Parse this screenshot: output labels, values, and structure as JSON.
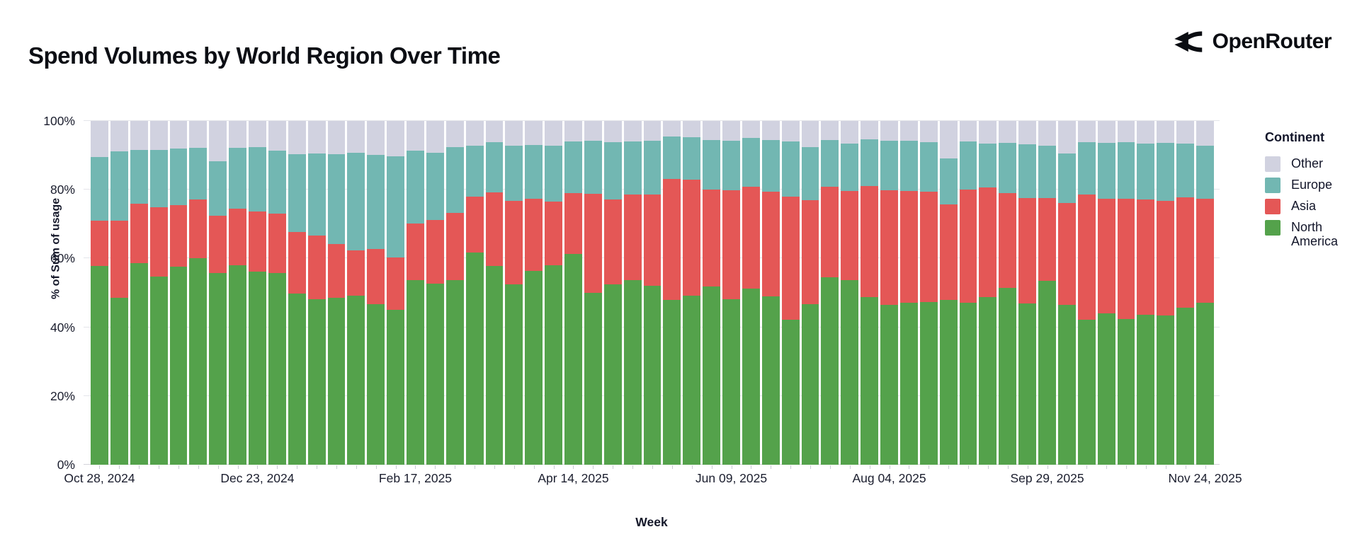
{
  "page": {
    "title": "Spend Volumes by World Region Over Time"
  },
  "brand": {
    "name": "OpenRouter",
    "icon": "openrouter-fork-arrows-icon"
  },
  "legend": {
    "title": "Continent",
    "items": [
      {
        "label": "Other",
        "color": "#d1d2e0"
      },
      {
        "label": "Europe",
        "color": "#72b7b2"
      },
      {
        "label": "Asia",
        "color": "#e45756"
      },
      {
        "label": "North America",
        "color": "#54a24b"
      }
    ]
  },
  "chart_data": {
    "type": "bar",
    "stacked": true,
    "normalized_percent": true,
    "title": "Spend Volumes by World Region Over Time",
    "xlabel": "Week",
    "ylabel": "% of Sum of usage",
    "ylim": [
      0,
      100
    ],
    "y_ticks": [
      "0%",
      "20%",
      "40%",
      "60%",
      "80%",
      "100%"
    ],
    "grid": true,
    "legend_position": "right",
    "x_tick_labels": [
      {
        "bar_index": 0,
        "label": "Oct 28, 2024"
      },
      {
        "bar_index": 8,
        "label": "Dec 23, 2024"
      },
      {
        "bar_index": 16,
        "label": "Feb 17, 2025"
      },
      {
        "bar_index": 24,
        "label": "Apr 14, 2025"
      },
      {
        "bar_index": 32,
        "label": "Jun 09, 2025"
      },
      {
        "bar_index": 40,
        "label": "Aug 04, 2025"
      },
      {
        "bar_index": 48,
        "label": "Sep 29, 2025"
      },
      {
        "bar_index": 56,
        "label": "Nov 24, 2025"
      }
    ],
    "categories": [
      "Oct 28, 2024",
      "Nov 04, 2024",
      "Nov 11, 2024",
      "Nov 18, 2024",
      "Nov 25, 2024",
      "Dec 02, 2024",
      "Dec 09, 2024",
      "Dec 16, 2024",
      "Dec 23, 2024",
      "Dec 30, 2024",
      "Jan 06, 2025",
      "Jan 13, 2025",
      "Jan 20, 2025",
      "Jan 27, 2025",
      "Feb 03, 2025",
      "Feb 10, 2025",
      "Feb 17, 2025",
      "Feb 24, 2025",
      "Mar 03, 2025",
      "Mar 10, 2025",
      "Mar 17, 2025",
      "Mar 24, 2025",
      "Mar 31, 2025",
      "Apr 07, 2025",
      "Apr 14, 2025",
      "Apr 21, 2025",
      "Apr 28, 2025",
      "May 05, 2025",
      "May 12, 2025",
      "May 19, 2025",
      "May 26, 2025",
      "Jun 02, 2025",
      "Jun 09, 2025",
      "Jun 16, 2025",
      "Jun 23, 2025",
      "Jun 30, 2025",
      "Jul 07, 2025",
      "Jul 14, 2025",
      "Jul 21, 2025",
      "Jul 28, 2025",
      "Aug 04, 2025",
      "Aug 11, 2025",
      "Aug 18, 2025",
      "Aug 25, 2025",
      "Sep 01, 2025",
      "Sep 08, 2025",
      "Sep 15, 2025",
      "Sep 22, 2025",
      "Sep 29, 2025",
      "Oct 06, 2025",
      "Oct 13, 2025",
      "Oct 20, 2025",
      "Oct 27, 2025",
      "Nov 03, 2025",
      "Nov 10, 2025",
      "Nov 17, 2025",
      "Nov 24, 2025"
    ],
    "series": [
      {
        "name": "North America",
        "color": "#54a24b",
        "values": [
          57.9,
          48.6,
          58.7,
          54.7,
          57.7,
          60.1,
          55.7,
          58.0,
          56.1,
          55.8,
          49.8,
          48.1,
          48.6,
          49.1,
          46.7,
          45.0,
          53.8,
          52.7,
          53.6,
          61.8,
          57.9,
          52.4,
          56.3,
          58.0,
          61.3,
          50.0,
          52.4,
          53.8,
          52.0,
          47.9,
          49.2,
          51.8,
          48.1,
          51.2,
          48.9,
          42.1,
          46.7,
          54.6,
          53.6,
          48.8,
          46.4,
          47.1,
          47.4,
          47.9,
          47.2,
          48.8,
          51.4,
          47.0,
          53.4,
          46.5,
          42.1,
          44.0,
          42.4,
          43.6,
          43.5,
          45.6,
          47.2
        ]
      },
      {
        "name": "Asia",
        "color": "#e45756",
        "values": [
          13.1,
          22.3,
          17.3,
          20.2,
          17.9,
          17.1,
          16.8,
          16.5,
          17.5,
          17.2,
          17.8,
          18.6,
          15.5,
          13.2,
          16.0,
          15.2,
          16.3,
          18.5,
          19.7,
          16.1,
          21.3,
          24.3,
          21.0,
          18.6,
          17.8,
          28.9,
          24.7,
          24.9,
          26.6,
          35.3,
          33.8,
          28.3,
          31.8,
          29.6,
          30.5,
          35.8,
          30.2,
          26.2,
          26.0,
          32.3,
          33.4,
          32.5,
          32.0,
          27.8,
          32.9,
          31.8,
          27.7,
          30.6,
          24.1,
          29.7,
          36.6,
          33.3,
          35.0,
          33.6,
          33.3,
          32.1,
          30.1
        ]
      },
      {
        "name": "Europe",
        "color": "#72b7b2",
        "values": [
          18.5,
          20.2,
          15.6,
          16.7,
          16.3,
          14.9,
          15.8,
          17.6,
          18.7,
          18.4,
          22.7,
          23.8,
          26.2,
          28.4,
          27.4,
          29.5,
          21.3,
          19.6,
          19.0,
          15.0,
          14.6,
          16.2,
          15.8,
          16.2,
          15.0,
          15.4,
          16.7,
          15.3,
          15.6,
          12.3,
          12.3,
          14.4,
          14.4,
          14.2,
          15.1,
          16.1,
          15.4,
          13.7,
          13.9,
          13.6,
          14.5,
          14.6,
          14.4,
          13.3,
          13.9,
          12.8,
          14.5,
          15.6,
          15.4,
          14.3,
          15.1,
          16.4,
          16.4,
          16.3,
          16.8,
          15.8,
          15.5
        ]
      },
      {
        "name": "Other",
        "color": "#d1d2e0",
        "values": [
          10.5,
          8.9,
          8.4,
          8.4,
          8.1,
          7.9,
          11.7,
          7.9,
          7.7,
          8.6,
          9.7,
          9.5,
          9.7,
          9.3,
          9.9,
          10.3,
          8.6,
          9.2,
          7.7,
          7.1,
          6.2,
          7.1,
          6.9,
          7.2,
          5.9,
          5.7,
          6.2,
          6.0,
          5.8,
          4.5,
          4.7,
          5.5,
          5.7,
          5.0,
          5.5,
          6.0,
          7.7,
          5.5,
          6.5,
          5.3,
          5.7,
          5.8,
          6.2,
          11.0,
          6.0,
          6.6,
          6.4,
          6.8,
          7.1,
          9.5,
          6.2,
          6.3,
          6.2,
          6.5,
          6.4,
          6.5,
          7.2
        ]
      }
    ]
  }
}
